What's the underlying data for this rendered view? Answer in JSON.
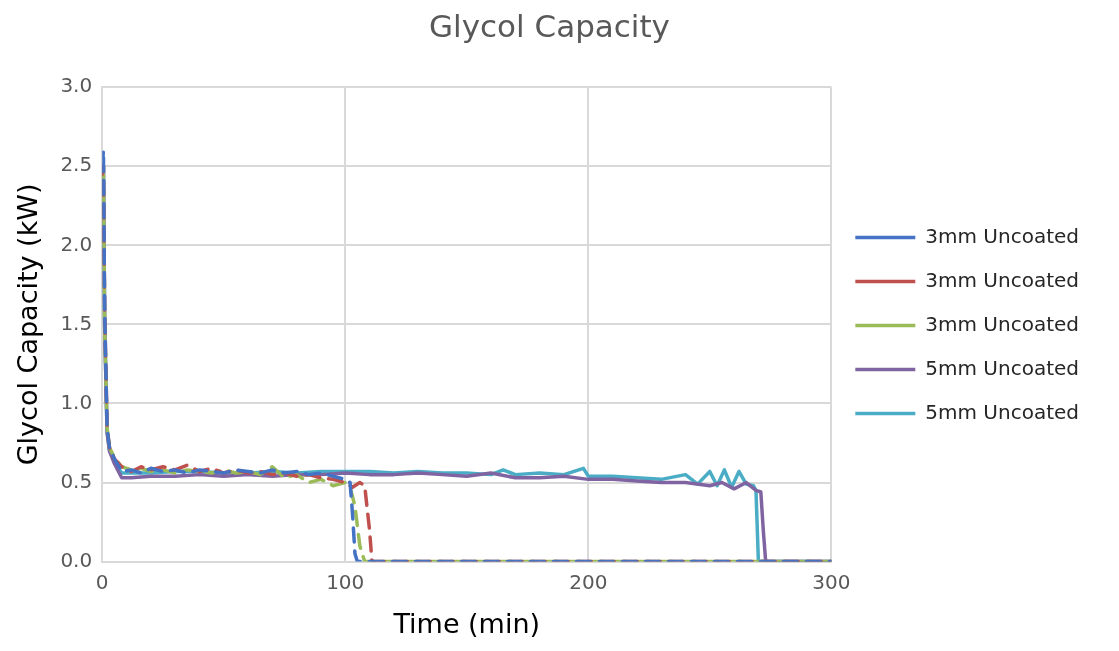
{
  "chart_data": {
    "type": "line",
    "title": "Glycol Capacity",
    "xlabel": "Time (min)",
    "ylabel": "Glycol Capacity (kW)",
    "xlim": [
      0,
      300
    ],
    "xticks": [
      0,
      100,
      200,
      300
    ],
    "ylim": [
      0,
      3
    ],
    "yticks": [
      {
        "value": 0,
        "label": "0.0"
      },
      {
        "value": 0.5,
        "label": "0.5"
      },
      {
        "value": 1,
        "label": "1.0"
      },
      {
        "value": 1.5,
        "label": "1.5"
      },
      {
        "value": 2,
        "label": "2.0"
      },
      {
        "value": 2.5,
        "label": "2.5"
      },
      {
        "value": 3,
        "label": "3.0"
      }
    ],
    "grid": true,
    "legend": "right",
    "marker": "none",
    "series": [
      {
        "name": "3mm Uncoated",
        "color": "#4472c4",
        "line_style": "dashed",
        "x": [
          0,
          0.5,
          1,
          2,
          3,
          5,
          8,
          12,
          16,
          20,
          25,
          30,
          35,
          40,
          45,
          50,
          55,
          60,
          65,
          70,
          75,
          80,
          85,
          90,
          95,
          100,
          102,
          103,
          104,
          105,
          120,
          150,
          200,
          250,
          300
        ],
        "values": [
          2.5,
          2.6,
          1.6,
          0.85,
          0.72,
          0.65,
          0.57,
          0.58,
          0.56,
          0.59,
          0.57,
          0.58,
          0.56,
          0.58,
          0.57,
          0.56,
          0.58,
          0.57,
          0.56,
          0.58,
          0.56,
          0.57,
          0.55,
          0.56,
          0.54,
          0.52,
          0.5,
          0.3,
          0.05,
          0,
          0,
          0,
          0,
          0,
          0
        ]
      },
      {
        "name": "3mm Uncoated",
        "color": "#c0504d",
        "line_style": "dashed",
        "x": [
          0,
          0.5,
          1,
          2,
          3,
          5,
          8,
          12,
          16,
          20,
          25,
          30,
          35,
          40,
          45,
          50,
          55,
          60,
          65,
          70,
          75,
          80,
          85,
          90,
          95,
          100,
          103,
          106,
          108,
          110,
          111,
          150,
          200,
          250,
          300
        ],
        "values": [
          2.45,
          2.5,
          1.6,
          0.85,
          0.72,
          0.65,
          0.6,
          0.57,
          0.6,
          0.58,
          0.6,
          0.58,
          0.61,
          0.57,
          0.59,
          0.56,
          0.58,
          0.56,
          0.57,
          0.55,
          0.56,
          0.54,
          0.55,
          0.53,
          0.52,
          0.5,
          0.47,
          0.5,
          0.48,
          0.2,
          0,
          0,
          0,
          0,
          0
        ]
      },
      {
        "name": "3mm Uncoated",
        "color": "#9bbb59",
        "line_style": "dashed",
        "x": [
          0,
          0.5,
          1,
          2,
          3,
          5,
          8,
          12,
          16,
          20,
          25,
          30,
          35,
          40,
          45,
          50,
          55,
          60,
          65,
          70,
          75,
          80,
          85,
          90,
          95,
          100,
          102,
          104,
          106,
          108,
          150,
          200,
          250,
          300
        ],
        "values": [
          2.4,
          2.45,
          1.5,
          0.85,
          0.72,
          0.66,
          0.6,
          0.58,
          0.59,
          0.57,
          0.58,
          0.56,
          0.58,
          0.57,
          0.56,
          0.58,
          0.56,
          0.57,
          0.55,
          0.6,
          0.53,
          0.55,
          0.5,
          0.52,
          0.48,
          0.5,
          0.47,
          0.35,
          0.1,
          0,
          0,
          0,
          0,
          0
        ]
      },
      {
        "name": "5mm Uncoated",
        "color": "#8064a2",
        "line_style": "solid",
        "x": [
          0,
          0.5,
          1,
          2,
          3,
          5,
          8,
          12,
          20,
          30,
          40,
          50,
          60,
          70,
          80,
          90,
          100,
          110,
          120,
          130,
          140,
          150,
          160,
          170,
          180,
          190,
          200,
          210,
          220,
          230,
          240,
          250,
          255,
          260,
          265,
          269,
          271,
          272,
          273,
          300
        ],
        "values": [
          2.4,
          2.5,
          1.5,
          0.82,
          0.7,
          0.62,
          0.53,
          0.53,
          0.54,
          0.54,
          0.55,
          0.54,
          0.55,
          0.54,
          0.55,
          0.55,
          0.56,
          0.55,
          0.55,
          0.56,
          0.55,
          0.54,
          0.56,
          0.53,
          0.53,
          0.54,
          0.52,
          0.52,
          0.51,
          0.5,
          0.5,
          0.48,
          0.5,
          0.46,
          0.5,
          0.45,
          0.44,
          0.2,
          0,
          0
        ]
      },
      {
        "name": "5mm Uncoated",
        "color": "#4bacc6",
        "line_style": "solid",
        "x": [
          0,
          0.5,
          1,
          2,
          3,
          5,
          8,
          12,
          20,
          30,
          40,
          50,
          60,
          70,
          80,
          90,
          100,
          110,
          120,
          130,
          140,
          150,
          160,
          165,
          170,
          180,
          190,
          198,
          200,
          210,
          220,
          230,
          240,
          245,
          250,
          253,
          256,
          259,
          262,
          265,
          268,
          269,
          270,
          300
        ],
        "values": [
          2.45,
          2.5,
          1.5,
          0.82,
          0.7,
          0.63,
          0.56,
          0.56,
          0.56,
          0.57,
          0.57,
          0.56,
          0.56,
          0.57,
          0.56,
          0.57,
          0.57,
          0.57,
          0.56,
          0.57,
          0.56,
          0.56,
          0.55,
          0.58,
          0.55,
          0.56,
          0.55,
          0.59,
          0.54,
          0.54,
          0.53,
          0.52,
          0.55,
          0.49,
          0.57,
          0.48,
          0.58,
          0.47,
          0.57,
          0.49,
          0.48,
          0.45,
          0,
          0
        ]
      }
    ]
  }
}
